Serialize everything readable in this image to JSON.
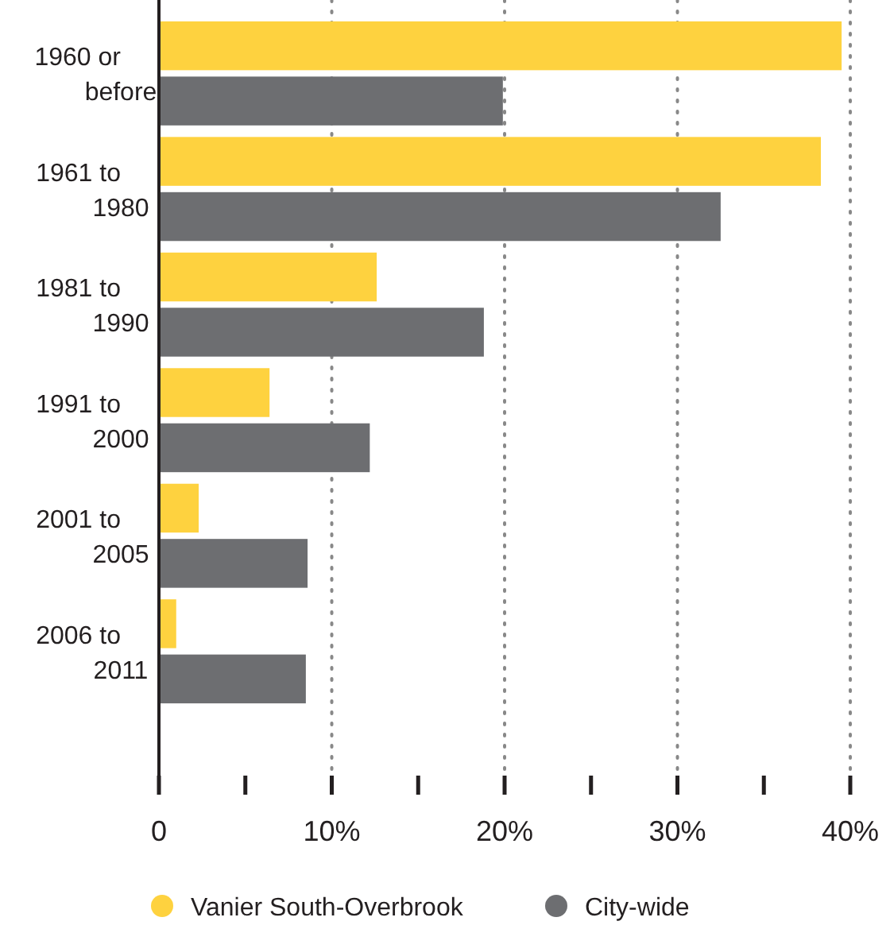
{
  "chart_data": {
    "type": "bar",
    "orientation": "horizontal",
    "categories": [
      "1960 or before",
      "1961 to 1980",
      "1981 to 1990",
      "1991 to 2000",
      "2001 to 2005",
      "2006 to 2011"
    ],
    "series": [
      {
        "name": "Vanier South-Overbrook",
        "color": "#fed23f",
        "values": [
          39.5,
          38.3,
          12.6,
          6.4,
          2.3,
          1.0
        ]
      },
      {
        "name": "City-wide",
        "color": "#6d6e71",
        "values": [
          19.9,
          32.5,
          18.8,
          12.2,
          8.6,
          8.5
        ]
      }
    ],
    "xlim": [
      0,
      40
    ],
    "xticks": [
      {
        "value": 0,
        "label": "0"
      },
      {
        "value": 5,
        "label": null
      },
      {
        "value": 10,
        "label": "10%"
      },
      {
        "value": 15,
        "label": null
      },
      {
        "value": 20,
        "label": "20%"
      },
      {
        "value": 25,
        "label": null
      },
      {
        "value": 30,
        "label": "30%"
      },
      {
        "value": 35,
        "label": null
      },
      {
        "value": 40,
        "label": "40%"
      }
    ],
    "grid": "x",
    "legend": "bottom"
  }
}
